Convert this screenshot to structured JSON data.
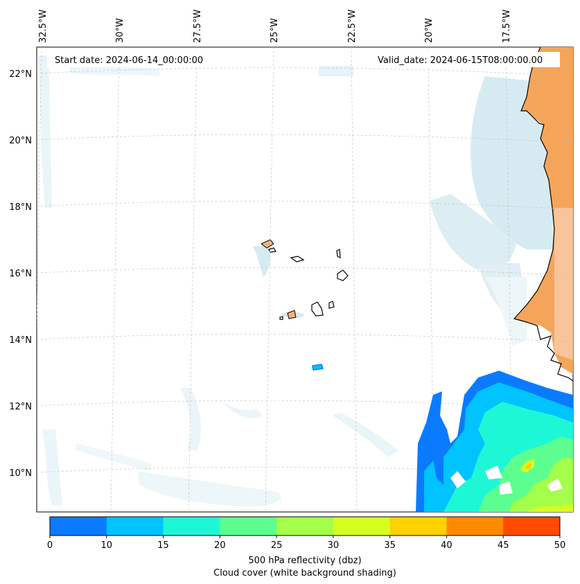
{
  "map": {
    "start_date_label": "Start date: 2024-06-14_00:00:00",
    "valid_date_label": "Valid_date: 2024-06-15T08:00:00.00",
    "lon_labels": [
      "32.5°W",
      "30°W",
      "27.5°W",
      "25°W",
      "22.5°W",
      "20°W",
      "17.5°W"
    ],
    "lat_labels": [
      "22°N",
      "20°N",
      "18°N",
      "16°N",
      "14°N",
      "12°N",
      "10°N"
    ],
    "land_color": "#f5a55a",
    "coast_color": "#000000"
  },
  "colorbar": {
    "ticks": [
      "0",
      "10",
      "15",
      "20",
      "25",
      "30",
      "35",
      "40",
      "45",
      "50"
    ],
    "colors": [
      "#0a7bff",
      "#00c3ff",
      "#1ef7d6",
      "#5cff8f",
      "#a3ff4a",
      "#d6ff20",
      "#ffd200",
      "#ff8a00",
      "#ff4a00"
    ],
    "label_line1": "500 hPa reflectivity (dbz)",
    "label_line2": "Cloud cover (white background shading)"
  }
}
